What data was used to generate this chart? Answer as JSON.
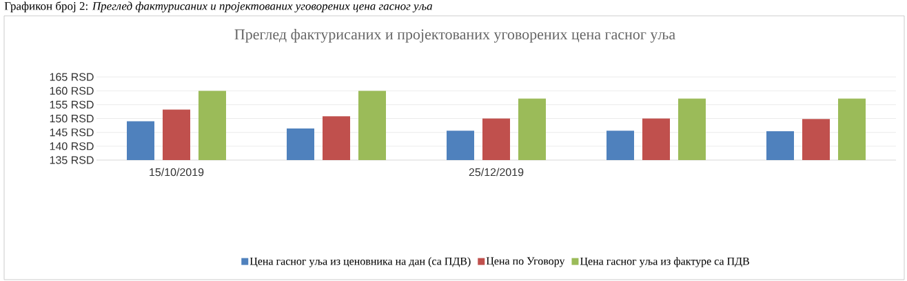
{
  "chart_data": {
    "type": "bar",
    "title": "Преглед фактурисаних и пројектованих уговорених цена гасног уља",
    "annotations": [
      "Графикон број 2: *Преглед фактурисаних и пројектованих уговорених цена гасног уља*"
    ],
    "categories": [
      "15/10/2019",
      null,
      "25/12/2019",
      null,
      null
    ],
    "series": [
      {
        "name": "Цена гасног уља из ценовника на дан (са ПДВ)",
        "color": "#4f81bd",
        "values": [
          149,
          146.4,
          145.6,
          145.6,
          145.4
        ]
      },
      {
        "name": "Цена по Уговору",
        "color": "#c0504d",
        "values": [
          153.2,
          150.8,
          150,
          150,
          149.8
        ]
      },
      {
        "name": "Цена гасног уља из фактуре са ПДВ",
        "color": "#9bbb59",
        "values": [
          160,
          160,
          157.2,
          157.2,
          157.2
        ]
      }
    ],
    "ylim": [
      135,
      165
    ],
    "yticks": [
      {
        "value": 135,
        "label": "135 RSD"
      },
      {
        "value": 140,
        "label": "140 RSD"
      },
      {
        "value": 145,
        "label": "145 RSD"
      },
      {
        "value": 150,
        "label": "150 RSD"
      },
      {
        "value": 155,
        "label": "155 RSD"
      },
      {
        "value": 160,
        "label": "160 RSD"
      },
      {
        "value": 165,
        "label": "165 RSD"
      }
    ],
    "grid": "y",
    "legend": "bottom"
  }
}
